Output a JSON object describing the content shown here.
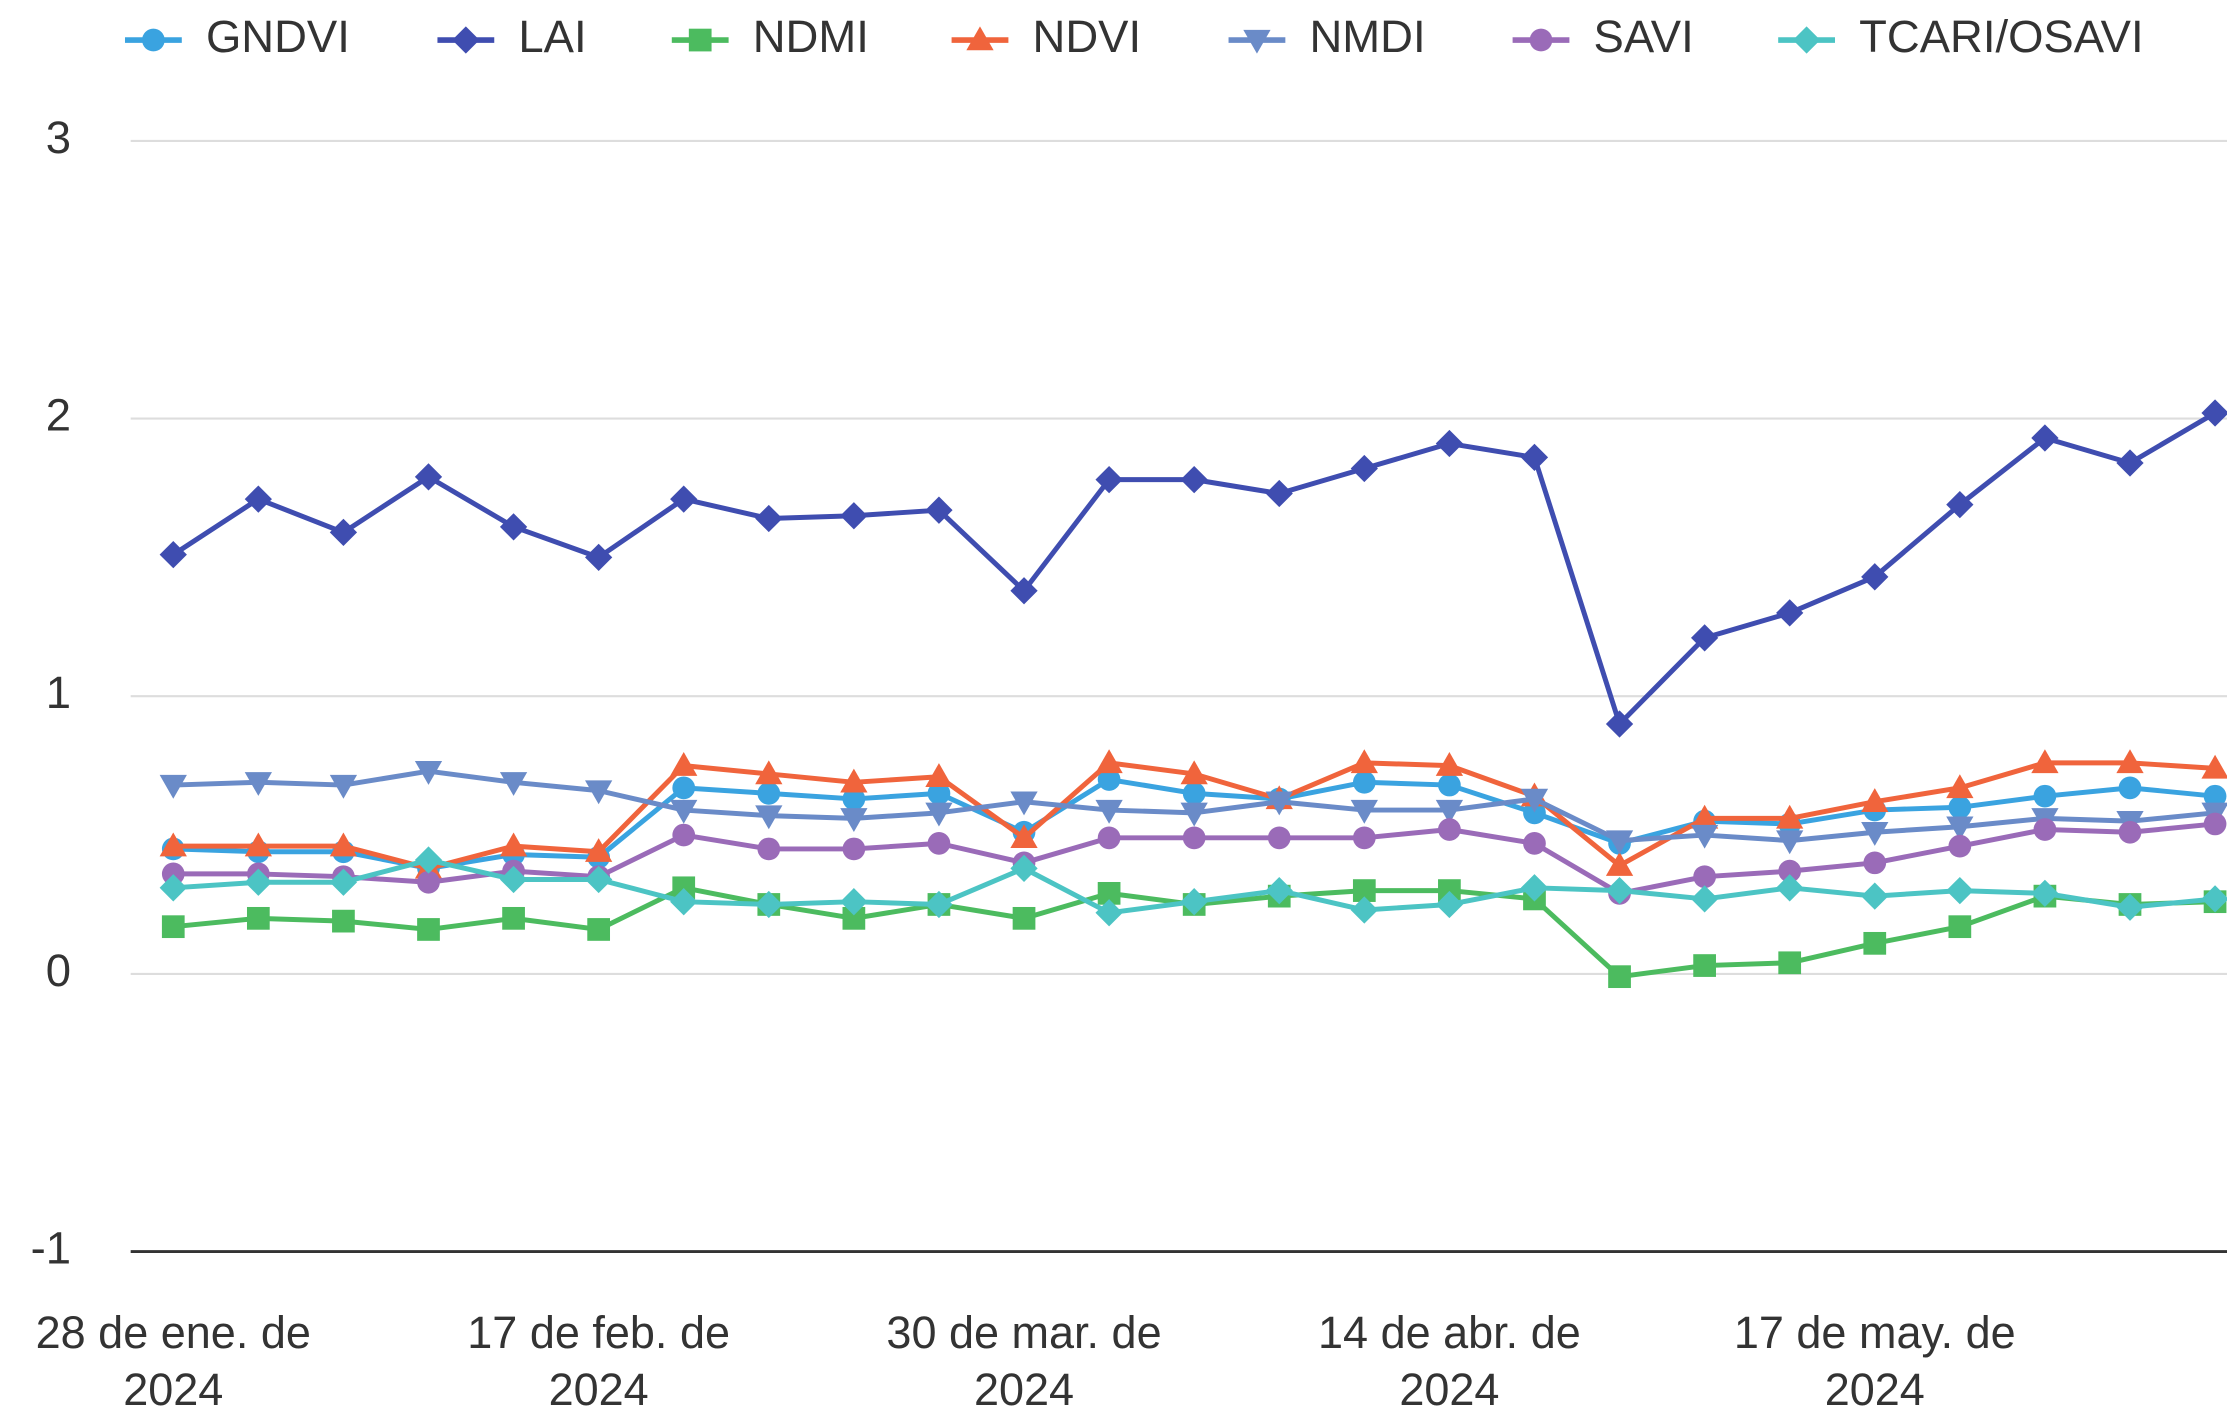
{
  "chart_data": {
    "type": "line",
    "categories": [
      "28 de ene. de\n2024",
      null,
      null,
      null,
      null,
      "17 de feb. de\n2024",
      null,
      null,
      null,
      null,
      "30 de mar. de\n2024",
      null,
      null,
      null,
      null,
      "14 de abr. de\n2024",
      null,
      null,
      null,
      null,
      "17 de may. de\n2024",
      null,
      null,
      null,
      null
    ],
    "ylim": [
      -1,
      3
    ],
    "yticks": [
      -1,
      0,
      1,
      2,
      3
    ],
    "grid": true,
    "legend": "top",
    "series": [
      {
        "name": "GNDVI",
        "color": "#3aa3e0",
        "marker": "circle",
        "values": [
          0.45,
          0.44,
          0.44,
          0.38,
          0.43,
          0.42,
          0.67,
          0.65,
          0.63,
          0.65,
          0.51,
          0.7,
          0.65,
          0.63,
          0.69,
          0.68,
          0.58,
          0.47,
          0.55,
          0.54,
          0.59,
          0.6,
          0.64,
          0.67,
          0.64
        ]
      },
      {
        "name": "LAI",
        "color": "#3f4db0",
        "marker": "diamond",
        "values": [
          1.51,
          1.71,
          1.59,
          1.79,
          1.61,
          1.5,
          1.71,
          1.64,
          1.65,
          1.67,
          1.38,
          1.78,
          1.78,
          1.73,
          1.82,
          1.91,
          1.86,
          0.9,
          1.21,
          1.3,
          1.43,
          1.69,
          1.93,
          1.84,
          2.02
        ]
      },
      {
        "name": "NDMI",
        "color": "#4cbb5f",
        "marker": "square",
        "values": [
          0.17,
          0.2,
          0.19,
          0.16,
          0.2,
          0.16,
          0.31,
          0.25,
          0.2,
          0.25,
          0.2,
          0.29,
          0.25,
          0.28,
          0.3,
          0.3,
          0.27,
          -0.01,
          0.03,
          0.04,
          0.11,
          0.17,
          0.28,
          0.25,
          0.26
        ]
      },
      {
        "name": "NDVI",
        "color": "#f0643c",
        "marker": "triangle-up",
        "values": [
          0.46,
          0.46,
          0.46,
          0.38,
          0.46,
          0.44,
          0.75,
          0.72,
          0.69,
          0.71,
          0.49,
          0.76,
          0.72,
          0.63,
          0.76,
          0.75,
          0.64,
          0.39,
          0.56,
          0.56,
          0.62,
          0.67,
          0.76,
          0.76,
          0.74
        ]
      },
      {
        "name": "NMDI",
        "color": "#6a8bc8",
        "marker": "triangle-down",
        "values": [
          0.68,
          0.69,
          0.68,
          0.73,
          0.69,
          0.66,
          0.59,
          0.57,
          0.56,
          0.58,
          0.62,
          0.59,
          0.58,
          0.62,
          0.59,
          0.59,
          0.63,
          0.48,
          0.5,
          0.48,
          0.51,
          0.53,
          0.56,
          0.55,
          0.58
        ]
      },
      {
        "name": "SAVI",
        "color": "#9a6bb8",
        "marker": "circle",
        "values": [
          0.36,
          0.36,
          0.35,
          0.33,
          0.37,
          0.35,
          0.5,
          0.45,
          0.45,
          0.47,
          0.4,
          0.49,
          0.49,
          0.49,
          0.49,
          0.52,
          0.47,
          0.29,
          0.35,
          0.37,
          0.4,
          0.46,
          0.52,
          0.51,
          0.54
        ]
      },
      {
        "name": "TCARI/OSAVI",
        "color": "#4cc4c4",
        "marker": "diamond",
        "values": [
          0.31,
          0.33,
          0.33,
          0.41,
          0.34,
          0.34,
          0.26,
          0.25,
          0.26,
          0.25,
          0.38,
          0.22,
          0.26,
          0.3,
          0.23,
          0.25,
          0.31,
          0.3,
          0.27,
          0.31,
          0.28,
          0.3,
          0.29,
          0.24,
          0.27
        ]
      }
    ]
  }
}
